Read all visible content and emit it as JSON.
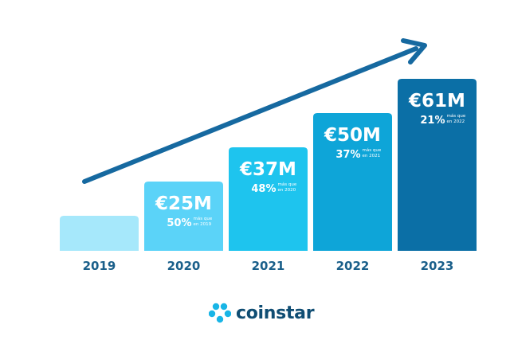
{
  "chart_data": {
    "type": "bar",
    "categories": [
      "2019",
      "2020",
      "2021",
      "2022",
      "2023"
    ],
    "values": [
      null,
      25,
      37,
      50,
      61
    ],
    "value_labels": [
      "",
      "€25M",
      "€37M",
      "€50M",
      "€61M"
    ],
    "growth_labels": [
      "",
      "50%",
      "48%",
      "37%",
      "21%"
    ],
    "growth_notes": [
      [
        "",
        ""
      ],
      [
        "más que",
        "en 2019"
      ],
      [
        "más que",
        "en 2020"
      ],
      [
        "más que",
        "en 2021"
      ],
      [
        "más que",
        "en 2022"
      ]
    ],
    "colors": [
      "#a6e8fb",
      "#5bd3f8",
      "#1ec4ee",
      "#0ea5d8",
      "#0b6fa6"
    ],
    "arrow_color": "#1669a0",
    "year_color": "#1a5f8a",
    "grid": false
  },
  "brand": {
    "name": "coinstar",
    "color": "#0f4d73",
    "icon_color": "#19b5e6"
  }
}
